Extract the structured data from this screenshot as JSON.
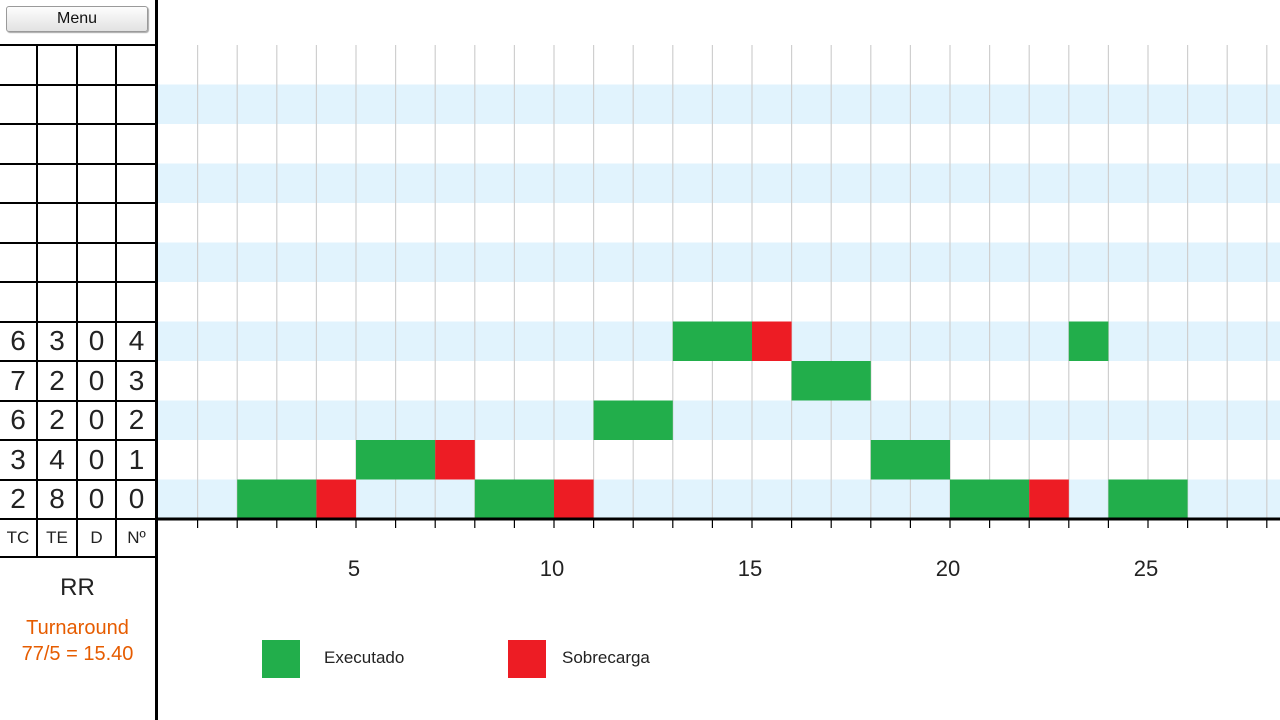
{
  "menu": {
    "label": "Menu"
  },
  "table": {
    "headers": [
      "TC",
      "TE",
      "D",
      "Nº"
    ],
    "rows": [
      [
        "",
        "",
        "",
        ""
      ],
      [
        "",
        "",
        "",
        ""
      ],
      [
        "",
        "",
        "",
        ""
      ],
      [
        "",
        "",
        "",
        ""
      ],
      [
        "",
        "",
        "",
        ""
      ],
      [
        "",
        "",
        "",
        ""
      ],
      [
        "",
        "",
        "",
        ""
      ],
      [
        "6",
        "3",
        "0",
        "4"
      ],
      [
        "7",
        "2",
        "0",
        "3"
      ],
      [
        "6",
        "2",
        "0",
        "2"
      ],
      [
        "3",
        "4",
        "0",
        "1"
      ],
      [
        "2",
        "8",
        "0",
        "0"
      ]
    ]
  },
  "algorithm": "RR",
  "turnaround": {
    "label": "Turnaround",
    "value": "77/5 = 15.40"
  },
  "legend": [
    {
      "label": "Executado",
      "color": "#22ae4b"
    },
    {
      "label": "Sobrecarga",
      "color": "#ed1c24"
    }
  ],
  "colors": {
    "band": "#e1f3fd",
    "executed": "#22ae4b",
    "overhead": "#ed1c24",
    "accent": "#e65c00"
  },
  "chart_data": {
    "type": "gantt",
    "x_ticks": [
      5,
      10,
      15,
      20,
      25
    ],
    "xlim": [
      0,
      28
    ],
    "rows": [
      "0",
      "1",
      "2",
      "3",
      "4"
    ],
    "tasks": [
      {
        "process": "0",
        "start": 2,
        "end": 4,
        "kind": "executed"
      },
      {
        "process": "0",
        "start": 4,
        "end": 5,
        "kind": "overhead"
      },
      {
        "process": "1",
        "start": 5,
        "end": 7,
        "kind": "executed"
      },
      {
        "process": "1",
        "start": 7,
        "end": 8,
        "kind": "overhead"
      },
      {
        "process": "0",
        "start": 8,
        "end": 10,
        "kind": "executed"
      },
      {
        "process": "0",
        "start": 10,
        "end": 11,
        "kind": "overhead"
      },
      {
        "process": "2",
        "start": 11,
        "end": 13,
        "kind": "executed"
      },
      {
        "process": "4",
        "start": 13,
        "end": 15,
        "kind": "executed"
      },
      {
        "process": "4",
        "start": 15,
        "end": 16,
        "kind": "overhead"
      },
      {
        "process": "3",
        "start": 16,
        "end": 18,
        "kind": "executed"
      },
      {
        "process": "1",
        "start": 18,
        "end": 20,
        "kind": "executed"
      },
      {
        "process": "0",
        "start": 20,
        "end": 22,
        "kind": "executed"
      },
      {
        "process": "0",
        "start": 22,
        "end": 23,
        "kind": "overhead"
      },
      {
        "process": "4",
        "start": 23,
        "end": 24,
        "kind": "executed"
      },
      {
        "process": "0",
        "start": 24,
        "end": 26,
        "kind": "executed"
      }
    ]
  }
}
